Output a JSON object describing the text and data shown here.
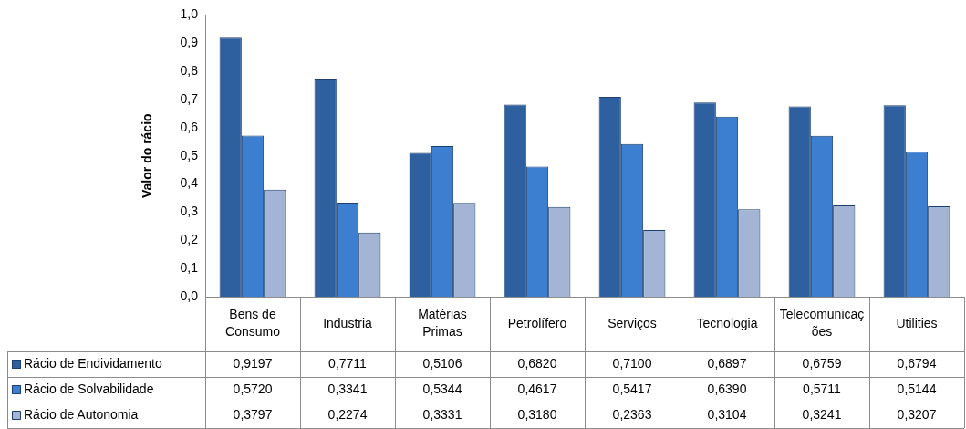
{
  "chart_data": {
    "type": "bar",
    "ylabel": "Valor do rácio",
    "categories": [
      "Bens de Consumo",
      "Industria",
      "Matérias Primas",
      "Petrolífero",
      "Serviços",
      "Tecnologia",
      "Telecomunicações",
      "Utilities"
    ],
    "series": [
      {
        "name": "Rácio de Endividamento",
        "color": "#2e5f9e",
        "values": [
          0.9197,
          0.7711,
          0.5106,
          0.682,
          0.71,
          0.6897,
          0.6759,
          0.6794
        ],
        "value_labels": [
          "0,9197",
          "0,7711",
          "0,5106",
          "0,6820",
          "0,7100",
          "0,6897",
          "0,6759",
          "0,6794"
        ]
      },
      {
        "name": "Rácio de Solvabilidade",
        "color": "#3c7fd0",
        "values": [
          0.572,
          0.3341,
          0.5344,
          0.4617,
          0.5417,
          0.639,
          0.5711,
          0.5144
        ],
        "value_labels": [
          "0,5720",
          "0,3341",
          "0,5344",
          "0,4617",
          "0,5417",
          "0,6390",
          "0,5711",
          "0,5144"
        ]
      },
      {
        "name": "Rácio de Autonomia",
        "color": "#a3b4d4",
        "values": [
          0.3797,
          0.2274,
          0.3331,
          0.318,
          0.2363,
          0.3104,
          0.3241,
          0.3207
        ],
        "value_labels": [
          "0,3797",
          "0,2274",
          "0,3331",
          "0,3180",
          "0,2363",
          "0,3104",
          "0,3241",
          "0,3207"
        ]
      }
    ],
    "ylim": [
      0,
      1
    ],
    "yticks": [
      {
        "value": 0,
        "label": "0,0"
      },
      {
        "value": 0.1,
        "label": "0,1"
      },
      {
        "value": 0.2,
        "label": "0,2"
      },
      {
        "value": 0.3,
        "label": "0,3"
      },
      {
        "value": 0.4,
        "label": "0,4"
      },
      {
        "value": 0.5,
        "label": "0,5"
      },
      {
        "value": 0.6,
        "label": "0,6"
      },
      {
        "value": 0.7,
        "label": "0,7"
      },
      {
        "value": 0.8,
        "label": "0,8"
      },
      {
        "value": 0.9,
        "label": "0,9"
      },
      {
        "value": 1,
        "label": "1,0"
      }
    ],
    "grid": false,
    "legend": "bottom left"
  }
}
